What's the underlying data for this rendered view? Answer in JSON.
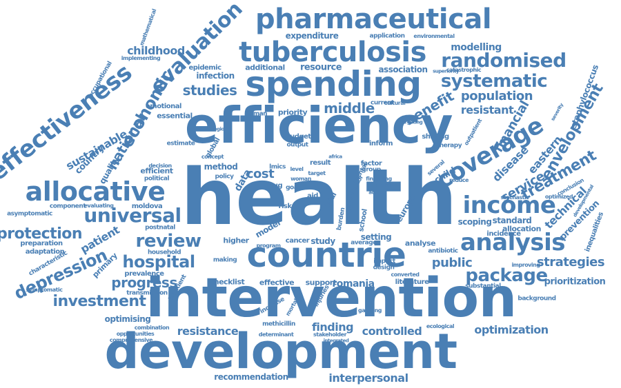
{
  "colors": {
    "word": "#4a7fb4",
    "background": "#ffffff"
  },
  "words": [
    "health",
    "efficiency",
    "intervention",
    "development",
    "countrie",
    "spending",
    "pharmaceutical",
    "tuberculosis",
    "allocative",
    "effectiveness",
    "income",
    "analysis",
    "universal",
    "coverage",
    "evaluation",
    "economic",
    "review",
    "randomised",
    "systematic",
    "hospital",
    "package",
    "depression",
    "investment",
    "progress",
    "protection",
    "treatment",
    "envelopment",
    "national",
    "middle",
    "studies",
    "benefit",
    "population",
    "resistant",
    "financial",
    "service",
    "strategies",
    "public",
    "technical",
    "disease",
    "eastern",
    "childhood",
    "sustainable",
    "patient",
    "resistance",
    "finding",
    "controlled",
    "optimization",
    "recommendation",
    "interpersonal",
    "staphylococcus",
    "modelling",
    "expenditure",
    "resource",
    "association",
    "prevention",
    "romania",
    "optimising",
    "prioritization",
    "cost",
    "data",
    "method",
    "model",
    "study",
    "setting",
    "europe",
    "child",
    "scoping",
    "standard",
    "allocation",
    "country",
    "quality",
    "emotional",
    "essential",
    "infection",
    "epidemic",
    "additional",
    "priority",
    "human",
    "budget",
    "output",
    "inform",
    "factor",
    "group",
    "shifting",
    "therapy",
    "component",
    "moldova",
    "efficient",
    "political",
    "decision",
    "estimate",
    "global",
    "drug",
    "cancer",
    "higher",
    "effective",
    "support",
    "checklist",
    "methicillin",
    "gauteng",
    "analyse",
    "impact",
    "design",
    "literature",
    "substantial",
    "incidence",
    "reduce",
    "stochastic",
    "optimized",
    "inequalities",
    "prevalence",
    "transmission",
    "primary",
    "characteristic",
    "adaptation",
    "preparation",
    "asymptomatic",
    "evaluating",
    "postnatal",
    "household",
    "symptomatic",
    "opportunities",
    "combination",
    "comprehensive",
    "stakeholder",
    "determinant",
    "ecological",
    "antibiotic",
    "improving",
    "background",
    "occupational",
    "implementing",
    "application",
    "environmental",
    "catastrophic",
    "superiority",
    "current",
    "cultural",
    "mental",
    "financing",
    "lmics",
    "level",
    "result",
    "policy",
    "goal",
    "woman",
    "risk",
    "aid",
    "trial",
    "school",
    "more",
    "burden",
    "sector",
    "increase",
    "concept",
    "mortality",
    "injuries",
    "converted",
    "integrated",
    "making",
    "several",
    "mathematical",
    "region",
    "targeting",
    "outpatient",
    "conclusion",
    "developmental",
    "severity",
    "inpatient",
    "africa",
    "target",
    "active",
    "acute",
    "average",
    "program"
  ]
}
